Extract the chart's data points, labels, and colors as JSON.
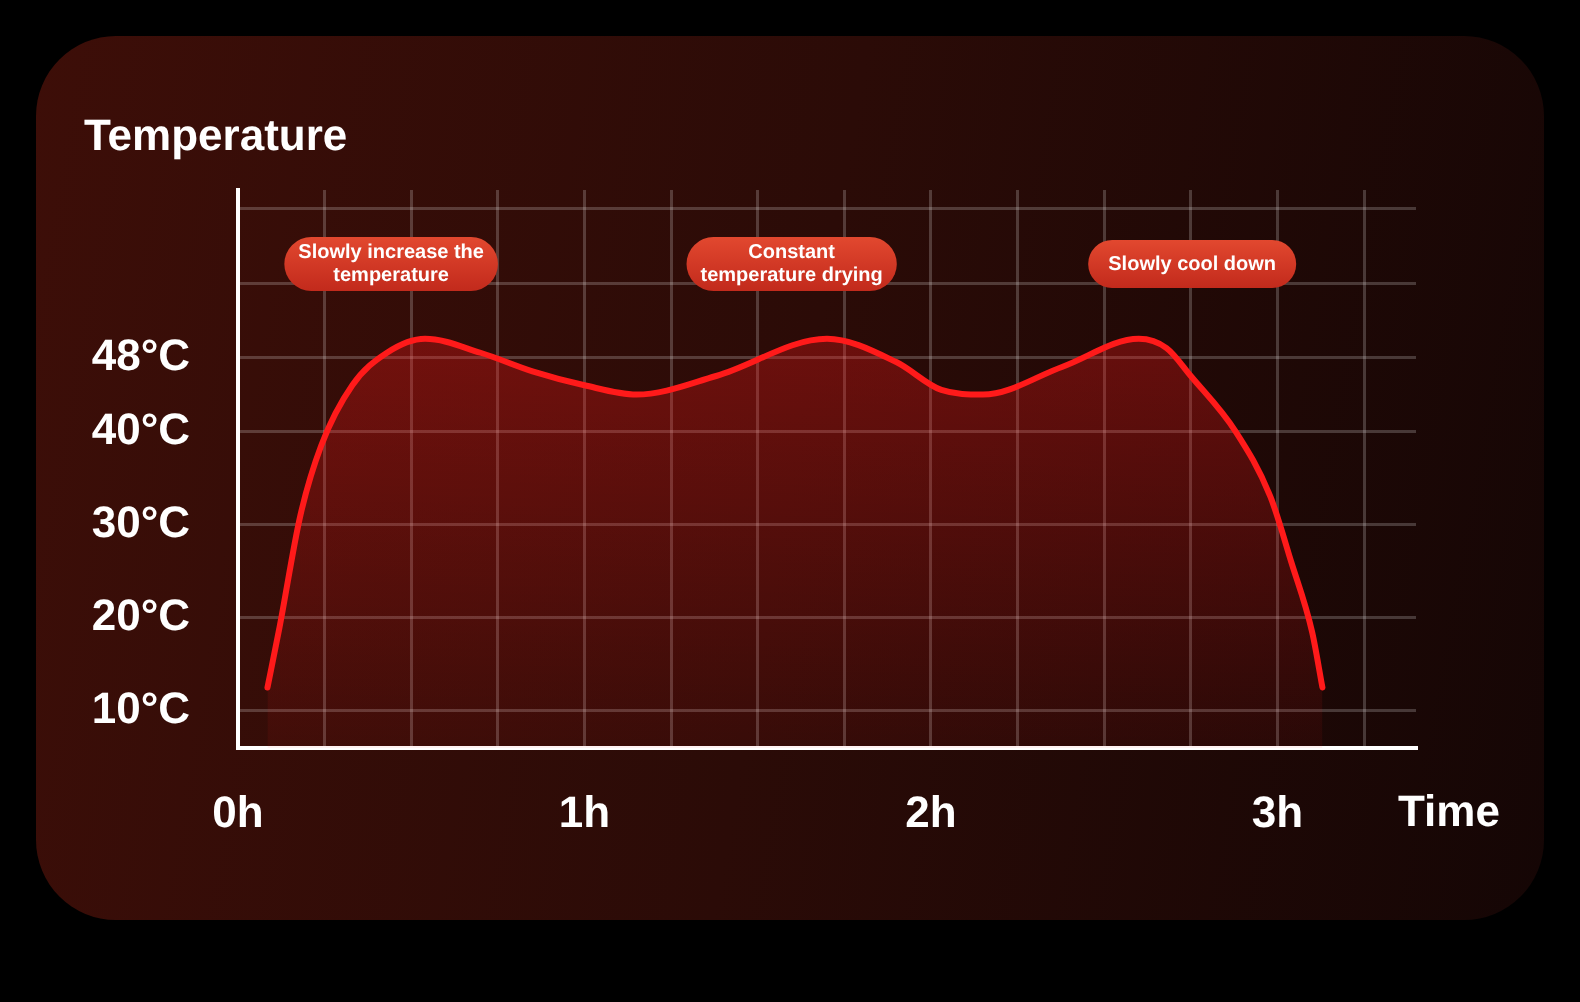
{
  "chart_data": {
    "type": "area",
    "xlabel": "Time",
    "ylabel": "Temperature",
    "x": [
      0.085,
      0.12,
      0.18,
      0.24,
      0.33,
      0.43,
      0.54,
      0.7,
      0.85,
      1.0,
      1.15,
      1.38,
      1.7,
      1.9,
      2.03,
      2.15,
      2.38,
      2.6,
      2.68,
      2.75,
      2.88,
      2.98,
      3.04,
      3.1,
      3.13
    ],
    "values": [
      12.5,
      19,
      31,
      38.5,
      45,
      48.5,
      50,
      48.5,
      46.5,
      45,
      44,
      46,
      50,
      47.5,
      44.5,
      44,
      47,
      50,
      49,
      46,
      40,
      33,
      26,
      18.5,
      12.5
    ],
    "color": "#ff1a1a",
    "xlim": [
      0,
      3.4
    ],
    "xticks": [
      {
        "value": 0,
        "label": "0h"
      },
      {
        "value": 0.25,
        "label": null
      },
      {
        "value": 0.5,
        "label": null
      },
      {
        "value": 0.75,
        "label": null
      },
      {
        "value": 1,
        "label": "1h"
      },
      {
        "value": 1.25,
        "label": null
      },
      {
        "value": 1.5,
        "label": null
      },
      {
        "value": 1.75,
        "label": null
      },
      {
        "value": 2,
        "label": "2h"
      },
      {
        "value": 2.25,
        "label": null
      },
      {
        "value": 2.5,
        "label": null
      },
      {
        "value": 2.75,
        "label": null
      },
      {
        "value": 3,
        "label": "3h"
      },
      {
        "value": 3.25,
        "label": null
      }
    ],
    "ylim": [
      6,
      66
    ],
    "yticks": [
      {
        "value": 10,
        "label": "10°C"
      },
      {
        "value": 20,
        "label": "20°C"
      },
      {
        "value": 30,
        "label": "30°C"
      },
      {
        "value": 40,
        "label": "40°C"
      },
      {
        "value": 48,
        "label": "48°C"
      },
      {
        "value": 56,
        "label": null
      },
      {
        "value": 64,
        "label": null
      }
    ],
    "grid": true,
    "legend": false,
    "marker": "none",
    "annotations": [
      "Slowly increase the temperature",
      "Constant temperature drying",
      "Slowly cool down"
    ]
  }
}
